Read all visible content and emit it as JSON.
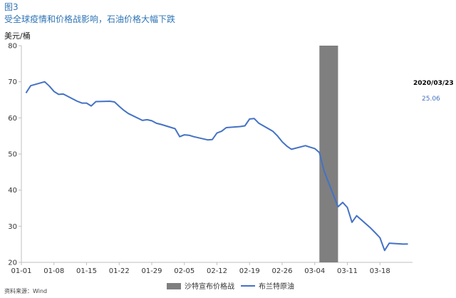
{
  "header": {
    "figure_label": "图3",
    "title": "受全球疫情和价格战影响，石油价格大幅下跌",
    "unit": "美元/桶"
  },
  "source": "资料来源：Wind",
  "annotation": {
    "date": "2020/03/23",
    "value": "25.06"
  },
  "colors": {
    "series": "#4472c4",
    "band": "#7f7f7f",
    "title": "#2e74b5"
  },
  "chart_data": {
    "type": "line",
    "ylim": [
      20,
      80
    ],
    "yticks": [
      20,
      30,
      40,
      50,
      60,
      70,
      80
    ],
    "xlim": [
      "2020-01-01",
      "2020-03-25"
    ],
    "xticks": [
      {
        "date": "2020-01-01",
        "label": "01-01"
      },
      {
        "date": "2020-01-08",
        "label": "01-08"
      },
      {
        "date": "2020-01-15",
        "label": "01-15"
      },
      {
        "date": "2020-01-22",
        "label": "01-22"
      },
      {
        "date": "2020-01-29",
        "label": "01-29"
      },
      {
        "date": "2020-02-05",
        "label": "02-05"
      },
      {
        "date": "2020-02-12",
        "label": "02-12"
      },
      {
        "date": "2020-02-19",
        "label": "02-19"
      },
      {
        "date": "2020-02-26",
        "label": "02-26"
      },
      {
        "date": "2020-03-04",
        "label": "03-04"
      },
      {
        "date": "2020-03-11",
        "label": "03-11"
      },
      {
        "date": "2020-03-18",
        "label": "03-18"
      }
    ],
    "bands": [
      {
        "name": "沙特宣布价格战",
        "start": "2020-03-05",
        "end": "2020-03-09"
      }
    ],
    "series": [
      {
        "name": "布兰特原油",
        "points": [
          [
            "2020-01-02",
            66.9
          ],
          [
            "2020-01-03",
            68.9
          ],
          [
            "2020-01-06",
            70.0
          ],
          [
            "2020-01-07",
            68.8
          ],
          [
            "2020-01-08",
            67.3
          ],
          [
            "2020-01-09",
            66.5
          ],
          [
            "2020-01-10",
            66.6
          ],
          [
            "2020-01-13",
            64.6
          ],
          [
            "2020-01-14",
            64.1
          ],
          [
            "2020-01-15",
            64.1
          ],
          [
            "2020-01-16",
            63.3
          ],
          [
            "2020-01-17",
            64.5
          ],
          [
            "2020-01-20",
            64.6
          ],
          [
            "2020-01-21",
            64.4
          ],
          [
            "2020-01-22",
            63.2
          ],
          [
            "2020-01-23",
            62.1
          ],
          [
            "2020-01-24",
            61.2
          ],
          [
            "2020-01-27",
            59.3
          ],
          [
            "2020-01-28",
            59.5
          ],
          [
            "2020-01-29",
            59.2
          ],
          [
            "2020-01-30",
            58.5
          ],
          [
            "2020-01-31",
            58.2
          ],
          [
            "2020-02-03",
            57.0
          ],
          [
            "2020-02-04",
            54.8
          ],
          [
            "2020-02-05",
            55.3
          ],
          [
            "2020-02-06",
            55.2
          ],
          [
            "2020-02-07",
            54.8
          ],
          [
            "2020-02-10",
            53.9
          ],
          [
            "2020-02-11",
            54.0
          ],
          [
            "2020-02-12",
            55.8
          ],
          [
            "2020-02-13",
            56.3
          ],
          [
            "2020-02-14",
            57.3
          ],
          [
            "2020-02-17",
            57.6
          ],
          [
            "2020-02-18",
            57.8
          ],
          [
            "2020-02-19",
            59.7
          ],
          [
            "2020-02-20",
            59.8
          ],
          [
            "2020-02-21",
            58.5
          ],
          [
            "2020-02-24",
            56.3
          ],
          [
            "2020-02-25",
            55.0
          ],
          [
            "2020-02-26",
            53.4
          ],
          [
            "2020-02-27",
            52.2
          ],
          [
            "2020-02-28",
            51.3
          ],
          [
            "2020-03-02",
            52.3
          ],
          [
            "2020-03-03",
            51.9
          ],
          [
            "2020-03-04",
            51.5
          ],
          [
            "2020-03-05",
            50.4
          ],
          [
            "2020-03-06",
            45.3
          ],
          [
            "2020-03-09",
            35.4
          ],
          [
            "2020-03-10",
            36.6
          ],
          [
            "2020-03-11",
            35.2
          ],
          [
            "2020-03-12",
            31.1
          ],
          [
            "2020-03-13",
            32.9
          ],
          [
            "2020-03-16",
            29.5
          ],
          [
            "2020-03-17",
            28.2
          ],
          [
            "2020-03-18",
            26.8
          ],
          [
            "2020-03-19",
            23.3
          ],
          [
            "2020-03-20",
            25.3
          ],
          [
            "2020-03-23",
            25.06
          ],
          [
            "2020-03-24",
            25.1
          ]
        ]
      }
    ]
  }
}
